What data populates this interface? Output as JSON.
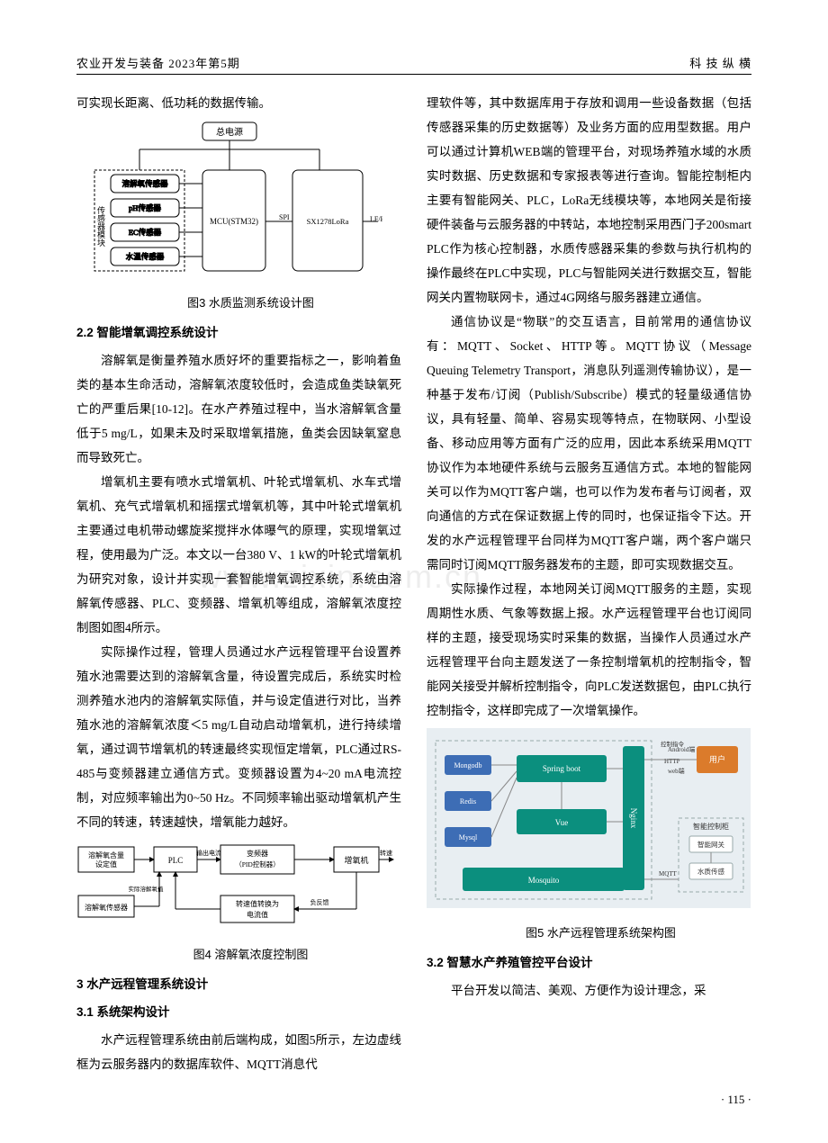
{
  "header": {
    "left": "农业开发与装备  2023年第5期",
    "right": "科 技 纵 横"
  },
  "left": {
    "p0": "可实现长距离、低功耗的数据传输。",
    "fig3": {
      "cap": "图3  水质监测系统设计图",
      "power": "总电源",
      "sensor_group": "传感器模块",
      "sensors": [
        "溶解氧传感器",
        "pH传感器",
        "EC传感器",
        "水温传感器"
      ],
      "mcu": "MCU(STM32)",
      "spi": "SPI",
      "lora": "SX1278LoRa",
      "band": "LF/HF",
      "stroke": "#000",
      "fill": "#fff"
    },
    "h22": "2.2  智能增氧调控系统设计",
    "p1": "溶解氧是衡量养殖水质好坏的重要指标之一，影响着鱼类的基本生命活动，溶解氧浓度较低时，会造成鱼类缺氧死亡的严重后果[10-12]。在水产养殖过程中，当水溶解氧含量低于5 mg/L，如果未及时采取增氧措施，鱼类会因缺氧窒息而导致死亡。",
    "p2": "增氧机主要有喷水式增氧机、叶轮式增氧机、水车式增氧机、充气式增氧机和摇摆式增氧机等，其中叶轮式增氧机主要通过电机带动螺旋桨搅拌水体曝气的原理，实现增氧过程，使用最为广泛。本文以一台380 V、1 kW的叶轮式增氧机为研究对象，设计并实现一套智能增氧调控系统，系统由溶解氧传感器、PLC、变频器、增氧机等组成，溶解氧浓度控制图如图4所示。",
    "p3": "实际操作过程，管理人员通过水产远程管理平台设置养殖水池需要达到的溶解氧含量，待设置完成后，系统实时检测养殖水池内的溶解氧实际值，并与设定值进行对比，当养殖水池的溶解氧浓度＜5 mg/L自动启动增氧机，进行持续增氧，通过调节增氧机的转速最终实现恒定增氧，PLC通过RS-485与变频器建立通信方式。变频器设置为4~20 mA电流控制，对应频率输出为0~50 Hz。不同频率输出驱动增氧机产生不同的转速，转速越快，增氧能力越好。",
    "fig4": {
      "cap": "图4  溶解氧浓度控制图",
      "n1": "溶解氧含量设定值",
      "n2": "PLC",
      "n3": "变频器（PID控制器）",
      "n4": "增氧机",
      "n5": "转速值转换为电流值",
      "n6": "溶解氧传感器",
      "e1": "输出电流",
      "e2": "转速",
      "e3": "负反馈",
      "e4": "实际溶解氧值",
      "stroke": "#000"
    },
    "h3": "3  水产远程管理系统设计",
    "h31": "3.1  系统架构设计",
    "p4": "水产远程管理系统由前后端构成，如图5所示，左边虚线框为云服务器内的数据库软件、MQTT消息代"
  },
  "right": {
    "p0": "理软件等，其中数据库用于存放和调用一些设备数据（包括传感器采集的历史数据等）及业务方面的应用型数据。用户可以通过计算机WEB端的管理平台，对现场养殖水域的水质实时数据、历史数据和专家报表等进行查询。智能控制柜内主要有智能网关、PLC，LoRa无线模块等，本地网关是衔接硬件装备与云服务器的中转站，本地控制采用西门子200smart PLC作为核心控制器，水质传感器采集的参数与执行机构的操作最终在PLC中实现，PLC与智能网关进行数据交互，智能网关内置物联网卡，通过4G网络与服务器建立通信。",
    "p1": "通信协议是“物联”的交互语言，目前常用的通信协议有：MQTT、Socket、HTTP等。MQTT协议（Message Queuing Telemetry Transport，消息队列遥测传输协议），是一种基于发布/订阅（Publish/Subscribe）模式的轻量级通信协议，具有轻量、简单、容易实现等特点，在物联网、小型设备、移动应用等方面有广泛的应用，因此本系统采用MQTT协议作为本地硬件系统与云服务互通信方式。本地的智能网关可以作为MQTT客户端，也可以作为发布者与订阅者，双向通信的方式在保证数据上传的同时，也保证指令下达。开发的水产远程管理平台同样为MQTT客户端，两个客户端只需同时订阅MQTT服务器发布的主题，即可实现数据交互。",
    "p2": "实际操作过程，本地网关订阅MQTT服务的主题，实现周期性水质、气象等数据上报。水产远程管理平台也订阅同样的主题，接受现场实时采集的数据，当操作人员通过水产远程管理平台向主题发送了一条控制增氧机的控制指令，智能网关接受并解析控制指令，向PLC发送数据包，由PLC执行控制指令，这样即完成了一次增氧操作。",
    "fig5": {
      "cap": "图5  水产远程管理系统架构图",
      "bg": "#e8eef2",
      "node_stroke": "#9aa",
      "mongo": "Mongodb",
      "redis": "Redis",
      "mysql": "Mysql",
      "spring": "Spring boot",
      "vue": "Vue",
      "mosquito": "Mosquito",
      "nginx": "Nginx",
      "user": "用户",
      "android": "Android端",
      "web": "web端",
      "cabinet": "智能控制柜",
      "gw": "智能网关",
      "plc": "水质传感",
      "http": "HTTP",
      "mqtt": "MQTT",
      "ctrl": "控制指令",
      "green": "#0b8f7e",
      "blue": "#3d6db5",
      "orange": "#db7b2b",
      "white": "#ffffff"
    },
    "h32": "3.2  智慧水产养殖管控平台设计",
    "p3": "平台开发以简洁、美观、方便作为设计理念，采"
  },
  "pagenum": "· 115 ·",
  "watermark": "www.zixin.com.cn"
}
